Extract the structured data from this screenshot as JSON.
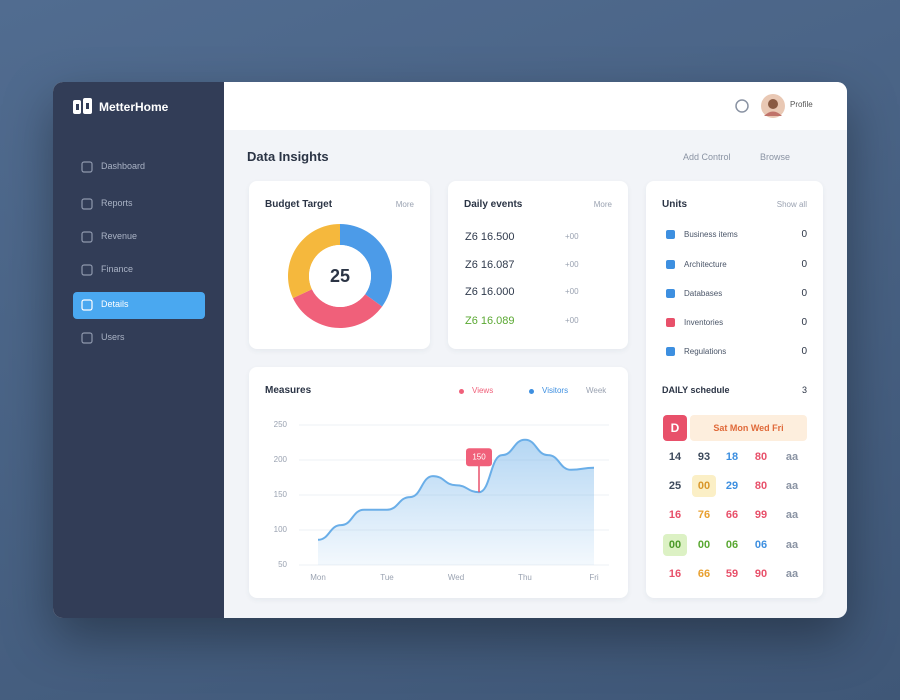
{
  "sidebar": {
    "brand": "MetterHome",
    "nav": [
      "Dashboard",
      "Reports",
      "Revenue",
      "Finance",
      "Details",
      "Users"
    ],
    "active": 4
  },
  "header": {
    "user": "Profile"
  },
  "page": {
    "title": "Data Insights",
    "actions": [
      "Add Control",
      "Browse"
    ]
  },
  "budget_card": {
    "title": "Budget Target",
    "link": "More"
  },
  "events_card": {
    "title": "Daily events",
    "link": "More",
    "rows": [
      {
        "value": "Z6 16.500",
        "change": "+00",
        "color": "#2f3a4c"
      },
      {
        "value": "Z6 16.087",
        "change": "+00",
        "color": "#2f3a4c"
      },
      {
        "value": "Z6 16.000",
        "change": "+00",
        "color": "#2f3a4c"
      },
      {
        "value": "Z6 16.089",
        "change": "+00",
        "color": "#5aa832"
      }
    ]
  },
  "units_card": {
    "title": "Units",
    "link": "Show all",
    "items": [
      {
        "label": "Business items",
        "value": "0",
        "color": "#3d8fe0"
      },
      {
        "label": "Architecture",
        "value": "0",
        "color": "#3d8fe0"
      },
      {
        "label": "Databases",
        "value": "0",
        "color": "#3d8fe0"
      },
      {
        "label": "Inventories",
        "value": "0",
        "color": "#e8506a"
      },
      {
        "label": "Regulations",
        "value": "0",
        "color": "#3d8fe0"
      }
    ],
    "schedule_title": "DAILY schedule",
    "schedule_count": "3",
    "schedule_day": "D",
    "schedule_header": "Sat Mon Wed Fri",
    "schedule": [
      [
        {
          "text": "14",
          "color": "#3d4a5c"
        },
        {
          "text": "93",
          "color": "#3d4a5c"
        },
        {
          "text": "18",
          "color": "#3d8fe0"
        },
        {
          "text": "80",
          "color": "#e8506a"
        },
        {
          "text": "aa",
          "color": "#8a93a3"
        }
      ],
      [
        {
          "text": "25",
          "color": "#3d4a5c"
        },
        {
          "text": "00",
          "color": "#d9962a",
          "highlight": "#fbefc6"
        },
        {
          "text": "29",
          "color": "#3d8fe0"
        },
        {
          "text": "80",
          "color": "#e8506a"
        },
        {
          "text": "aa",
          "color": "#8a93a3"
        }
      ],
      [
        {
          "text": "16",
          "color": "#e8506a"
        },
        {
          "text": "76",
          "color": "#e8a030"
        },
        {
          "text": "66",
          "color": "#e8506a"
        },
        {
          "text": "99",
          "color": "#e8506a"
        },
        {
          "text": "aa",
          "color": "#8a93a3"
        }
      ],
      [
        {
          "text": "00",
          "color": "#4c9a2a",
          "highlight": "#dcf1c4"
        },
        {
          "text": "00",
          "color": "#5aa832"
        },
        {
          "text": "06",
          "color": "#5aa832"
        },
        {
          "text": "06",
          "color": "#3d8fe0"
        },
        {
          "text": "aa",
          "color": "#8a93a3"
        }
      ],
      [
        {
          "text": "16",
          "color": "#e8506a"
        },
        {
          "text": "66",
          "color": "#e8a030"
        },
        {
          "text": "59",
          "color": "#e8506a"
        },
        {
          "text": "90",
          "color": "#e8506a"
        },
        {
          "text": "aa",
          "color": "#8a93a3"
        }
      ]
    ]
  },
  "chart_data": [
    {
      "type": "donut",
      "center_label": "25",
      "categories": [
        null,
        null,
        null
      ],
      "values": [
        35,
        33,
        32
      ],
      "colors": [
        "#4c9be8",
        "#f0607a",
        "#f5b83d"
      ]
    },
    {
      "type": "area",
      "title": "Measures",
      "legend_labels": [
        {
          "name": "Views",
          "color": "#f0607a"
        },
        {
          "name": "Visitors",
          "color": "#3d8fe0"
        }
      ],
      "period": "Week",
      "categories": [
        "Mon",
        null,
        null,
        "Tue",
        null,
        null,
        "Wed",
        null,
        null,
        "Thu",
        null,
        null,
        "Fri"
      ],
      "series": [
        {
          "name": "Visitors",
          "color": "#6aaee8",
          "values": [
            86,
            107,
            129,
            129,
            147,
            177,
            164,
            154,
            207,
            229,
            207,
            186,
            189
          ]
        }
      ],
      "ylim": [
        50,
        250
      ],
      "yticks": [
        50,
        100,
        150,
        200,
        250
      ],
      "grid": true,
      "annotation": {
        "index": 7,
        "label": "150"
      }
    }
  ]
}
